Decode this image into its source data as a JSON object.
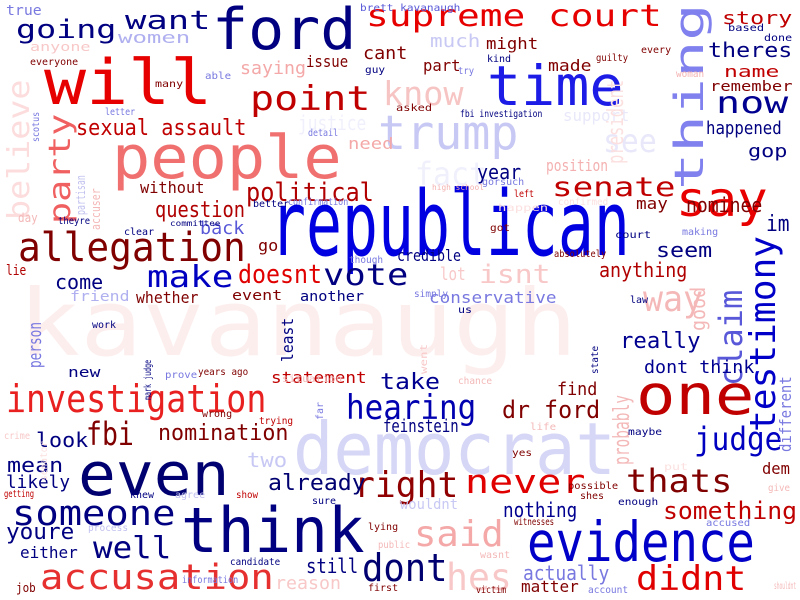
{
  "word_cloud": {
    "words": [
      {
        "text": "kavanaugh",
        "color": "#fdeeee"
      },
      {
        "text": "republican",
        "color": "#0000e0"
      },
      {
        "text": "democrat",
        "color": "#d6d6f6"
      },
      {
        "text": "people",
        "color": "#f06f6f"
      },
      {
        "text": "will",
        "color": "#e60000"
      },
      {
        "text": "ford",
        "color": "#000080"
      },
      {
        "text": "think",
        "color": "#000080"
      },
      {
        "text": "time",
        "color": "#1c1ce6"
      },
      {
        "text": "even",
        "color": "#000070"
      },
      {
        "text": "evidence",
        "color": "#0000c8"
      },
      {
        "text": "one",
        "color": "#c00000"
      },
      {
        "text": "say",
        "color": "#e80000"
      },
      {
        "text": "thing",
        "color": "#8080ee"
      },
      {
        "text": "trump",
        "color": "#c8c8f4"
      },
      {
        "text": "allegation",
        "color": "#800000"
      },
      {
        "text": "investigation",
        "color": "#e82020"
      },
      {
        "text": "accusation",
        "color": "#e63030"
      },
      {
        "text": "supreme court",
        "color": "#e60000"
      },
      {
        "text": "someone",
        "color": "#000080"
      },
      {
        "text": "said",
        "color": "#f4a8a8"
      },
      {
        "text": "point",
        "color": "#c00000"
      },
      {
        "text": "know",
        "color": "#f7c4c4"
      },
      {
        "text": "senate",
        "color": "#c00000"
      },
      {
        "text": "testimony",
        "color": "#0000c8"
      },
      {
        "text": "hearing",
        "color": "#0000b0"
      },
      {
        "text": "now",
        "color": "#000090"
      },
      {
        "text": "right",
        "color": "#900000"
      },
      {
        "text": "never",
        "color": "#e00000"
      },
      {
        "text": "thats",
        "color": "#800000"
      },
      {
        "text": "judge",
        "color": "#0000c0"
      },
      {
        "text": "dont",
        "color": "#000070"
      },
      {
        "text": "didnt",
        "color": "#e00000"
      },
      {
        "text": "claim",
        "color": "#5858d8"
      },
      {
        "text": "vote",
        "color": "#000080"
      },
      {
        "text": "make",
        "color": "#0000c0"
      },
      {
        "text": "isnt",
        "color": "#f8c8c8"
      },
      {
        "text": "way",
        "color": "#f5b8b8"
      },
      {
        "text": "believe",
        "color": "#fcdcdc"
      },
      {
        "text": "party",
        "color": "#f06060"
      },
      {
        "text": "hes",
        "color": "#f8c8c8"
      },
      {
        "text": "fbi",
        "color": "#800000"
      },
      {
        "text": "well",
        "color": "#000080"
      },
      {
        "text": "going",
        "color": "#000080"
      },
      {
        "text": "want",
        "color": "#000080"
      },
      {
        "text": "doesnt",
        "color": "#e00000"
      },
      {
        "text": "political",
        "color": "#b00000"
      },
      {
        "text": "dr ford",
        "color": "#800000"
      },
      {
        "text": "something",
        "color": "#c00000"
      },
      {
        "text": "nomination",
        "color": "#800000"
      },
      {
        "text": "youre",
        "color": "#000080"
      },
      {
        "text": "fact",
        "color": "#f0f0fc"
      },
      {
        "text": "see",
        "color": "#e8e8fa"
      },
      {
        "text": "sexual assault",
        "color": "#c00000"
      },
      {
        "text": "take",
        "color": "#000090"
      },
      {
        "text": "look",
        "color": "#000080"
      },
      {
        "text": "already",
        "color": "#000070"
      },
      {
        "text": "question",
        "color": "#b00000"
      },
      {
        "text": "nothing",
        "color": "#000090"
      },
      {
        "text": "really",
        "color": "#000090"
      },
      {
        "text": "dont think",
        "color": "#000090"
      },
      {
        "text": "nominee",
        "color": "#800000"
      },
      {
        "text": "year",
        "color": "#000080"
      },
      {
        "text": "come",
        "color": "#000080"
      },
      {
        "text": "mean",
        "color": "#000080"
      },
      {
        "text": "anything",
        "color": "#b00000"
      },
      {
        "text": "actually",
        "color": "#7878e0"
      },
      {
        "text": "still",
        "color": "#000080"
      },
      {
        "text": "seem",
        "color": "#000080"
      },
      {
        "text": "happened",
        "color": "#000080"
      },
      {
        "text": "feinstein",
        "color": "#000080"
      },
      {
        "text": "statement",
        "color": "#c00000"
      },
      {
        "text": "likely",
        "color": "#000080"
      },
      {
        "text": "two",
        "color": "#c8c8f4"
      },
      {
        "text": "women",
        "color": "#b0b0f0"
      },
      {
        "text": "cant",
        "color": "#800000"
      },
      {
        "text": "much",
        "color": "#c8c8f4"
      },
      {
        "text": "story",
        "color": "#c00000"
      },
      {
        "text": "theres",
        "color": "#000080"
      },
      {
        "text": "name",
        "color": "#c00000"
      },
      {
        "text": "remember",
        "color": "#800000"
      },
      {
        "text": "gop",
        "color": "#000080"
      },
      {
        "text": "find",
        "color": "#800000"
      },
      {
        "text": "conservative",
        "color": "#7878e0"
      },
      {
        "text": "lot",
        "color": "#f8c8c8"
      },
      {
        "text": "credible",
        "color": "#000080"
      },
      {
        "text": "person",
        "color": "#7878e0"
      },
      {
        "text": "saying",
        "color": "#f4a8a8"
      },
      {
        "text": "issue",
        "color": "#800000"
      },
      {
        "text": "part",
        "color": "#800000"
      },
      {
        "text": "made",
        "color": "#800000"
      },
      {
        "text": "might",
        "color": "#800000"
      },
      {
        "text": "position",
        "color": "#f4b0b0"
      },
      {
        "text": "reason",
        "color": "#f8c8c8"
      },
      {
        "text": "matter",
        "color": "#800000"
      },
      {
        "text": "probably",
        "color": "#f4b8b8"
      },
      {
        "text": "whether",
        "color": "#800000"
      },
      {
        "text": "event",
        "color": "#800000"
      },
      {
        "text": "another",
        "color": "#000080"
      },
      {
        "text": "back",
        "color": "#5858d8"
      },
      {
        "text": "without",
        "color": "#800000"
      },
      {
        "text": "justice",
        "color": "#f0f0fc"
      },
      {
        "text": "need",
        "color": "#f4a8a8"
      },
      {
        "text": "support",
        "color": "#e8e8fa"
      },
      {
        "text": "go",
        "color": "#800000"
      },
      {
        "text": "either",
        "color": "#000080"
      },
      {
        "text": "new",
        "color": "#000080"
      },
      {
        "text": "least",
        "color": "#000080"
      },
      {
        "text": "wouldnt",
        "color": "#c8c8f4"
      },
      {
        "text": "im",
        "color": "#000080"
      },
      {
        "text": "dem",
        "color": "#800000"
      },
      {
        "text": "different",
        "color": "#7878e0"
      },
      {
        "text": "friend",
        "color": "#b0b0f0"
      },
      {
        "text": "good",
        "color": "#f4b8b8"
      },
      {
        "text": "may",
        "color": "#800000"
      },
      {
        "text": "lie",
        "color": "#b00000"
      },
      {
        "text": "president",
        "color": "#fce0e0"
      },
      {
        "text": "true",
        "color": "#7878e0"
      },
      {
        "text": "anyone",
        "color": "#f8c8c8"
      },
      {
        "text": "brett kavanaugh",
        "color": "#5858d8"
      },
      {
        "text": "fbi investigation",
        "color": "#000080"
      },
      {
        "text": "high school",
        "color": "#f4b0b0"
      },
      {
        "text": "confirmation",
        "color": "#7878e0"
      },
      {
        "text": "gorsuch",
        "color": "#7878e0"
      },
      {
        "text": "mark judge",
        "color": "#000080"
      },
      {
        "text": "years ago",
        "color": "#800000"
      },
      {
        "text": "asked",
        "color": "#800000"
      },
      {
        "text": "accuser",
        "color": "#f4b8b8"
      },
      {
        "text": "partisan",
        "color": "#c0c0f0"
      },
      {
        "text": "scotus",
        "color": "#7878e0"
      },
      {
        "text": "letter",
        "color": "#7878e0"
      },
      {
        "text": "everyone",
        "color": "#800000"
      },
      {
        "text": "many",
        "color": "#800000"
      },
      {
        "text": "able",
        "color": "#7878e0"
      },
      {
        "text": "guy",
        "color": "#000080"
      },
      {
        "text": "kind",
        "color": "#000080"
      },
      {
        "text": "try",
        "color": "#7878e0"
      },
      {
        "text": "guilty",
        "color": "#800000"
      },
      {
        "text": "every",
        "color": "#800000"
      },
      {
        "text": "based",
        "color": "#000080"
      },
      {
        "text": "done",
        "color": "#000080"
      },
      {
        "text": "woman",
        "color": "#f4b0b0"
      },
      {
        "text": "detail",
        "color": "#7878e0"
      },
      {
        "text": "better",
        "color": "#000080"
      },
      {
        "text": "committee",
        "color": "#000080"
      },
      {
        "text": "clear",
        "color": "#000080"
      },
      {
        "text": "theyre",
        "color": "#000080"
      },
      {
        "text": "day",
        "color": "#f4b8b8"
      },
      {
        "text": "though",
        "color": "#7878e0"
      },
      {
        "text": "got",
        "color": "#800000"
      },
      {
        "text": "left",
        "color": "#c00000"
      },
      {
        "text": "absolutely",
        "color": "#800000"
      },
      {
        "text": "happen",
        "color": "#fce0e0"
      },
      {
        "text": "confirmed",
        "color": "#fce0e0"
      },
      {
        "text": "court",
        "color": "#000080"
      },
      {
        "text": "making",
        "color": "#7878e0"
      },
      {
        "text": "law",
        "color": "#000080"
      },
      {
        "text": "simply",
        "color": "#7878e0"
      },
      {
        "text": "us",
        "color": "#000080"
      },
      {
        "text": "work",
        "color": "#000080"
      },
      {
        "text": "prove",
        "color": "#7878e0"
      },
      {
        "text": "went",
        "color": "#f8c8c8"
      },
      {
        "text": "state",
        "color": "#000080"
      },
      {
        "text": "chance",
        "color": "#f4b8b8"
      },
      {
        "text": "situation",
        "color": "#f4b8b8"
      },
      {
        "text": "wrong",
        "color": "#800000"
      },
      {
        "text": "trying",
        "color": "#c00000"
      },
      {
        "text": "far",
        "color": "#7878e0"
      },
      {
        "text": "life",
        "color": "#f4b8b8"
      },
      {
        "text": "yes",
        "color": "#800000"
      },
      {
        "text": "maybe",
        "color": "#000080"
      },
      {
        "text": "put",
        "color": "#fce0e0"
      },
      {
        "text": "senator",
        "color": "#fce0e0"
      },
      {
        "text": "crime",
        "color": "#f8c8c8"
      },
      {
        "text": "getting",
        "color": "#c00000"
      },
      {
        "text": "knew",
        "color": "#000080"
      },
      {
        "text": "agree",
        "color": "#c0c0f0"
      },
      {
        "text": "show",
        "color": "#c00000"
      },
      {
        "text": "sure",
        "color": "#000080"
      },
      {
        "text": "possible",
        "color": "#800000"
      },
      {
        "text": "shes",
        "color": "#800000"
      },
      {
        "text": "enough",
        "color": "#000080"
      },
      {
        "text": "give",
        "color": "#f4b8b8"
      },
      {
        "text": "process",
        "color": "#c0c0f0"
      },
      {
        "text": "witnesses",
        "color": "#800000"
      },
      {
        "text": "accused",
        "color": "#7878e0"
      },
      {
        "text": "lying",
        "color": "#800000"
      },
      {
        "text": "candidate",
        "color": "#000080"
      },
      {
        "text": "public",
        "color": "#f4b8b8"
      },
      {
        "text": "information",
        "color": "#7878e0"
      },
      {
        "text": "wasnt",
        "color": "#f4b8b8"
      },
      {
        "text": "first",
        "color": "#800000"
      },
      {
        "text": "victim",
        "color": "#800000"
      },
      {
        "text": "account",
        "color": "#7878e0"
      },
      {
        "text": "job",
        "color": "#800000"
      },
      {
        "text": "shouldnt",
        "color": "#f4b8b8"
      }
    ]
  }
}
